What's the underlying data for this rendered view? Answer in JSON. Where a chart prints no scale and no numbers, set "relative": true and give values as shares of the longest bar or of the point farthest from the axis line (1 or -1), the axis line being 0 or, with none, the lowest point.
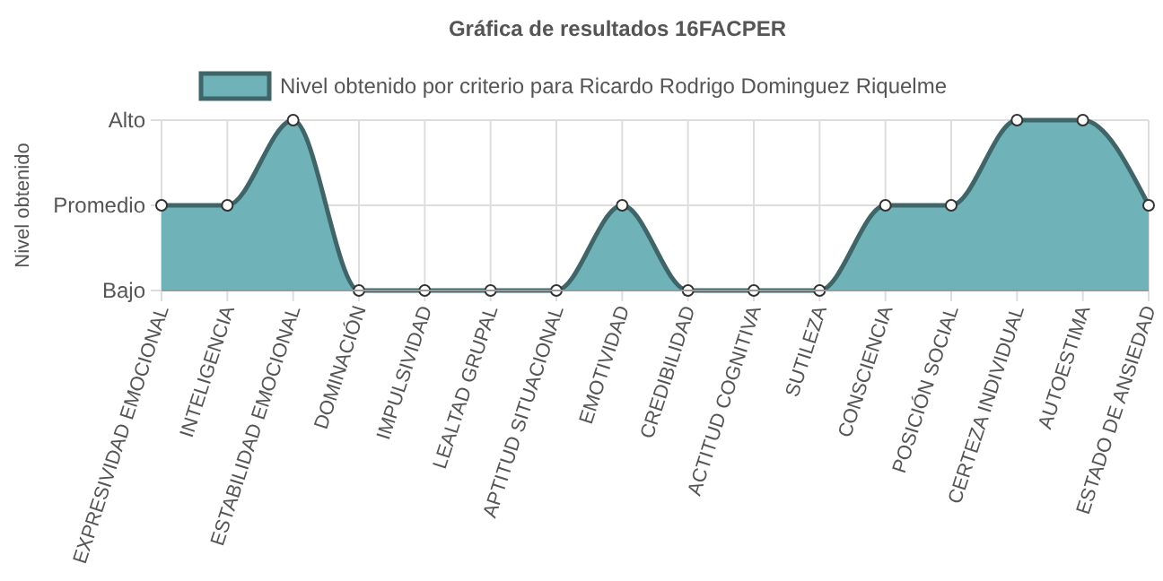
{
  "chart_data": {
    "type": "area",
    "title": "Gráfica de resultados 16FACPER",
    "ylabel": "Nivel obtenido",
    "categories": [
      "EXPRESIVIDAD EMOCIONAL",
      "INTELIGENCIA",
      "ESTABILIDAD EMOCIONAL",
      "DOMINACIÓN",
      "IMPULSIVIDAD",
      "LEALTAD GRUPAL",
      "APTITUD SITUACIONAL",
      "EMOTIVIDAD",
      "CREDIBILIDAD",
      "ACTITUD COGNITIVA",
      "SUTILEZA",
      "CONSCIENCIA",
      "POSICIÓN SOCIAL",
      "CERTEZA INDIVIDUAL",
      "AUTOESTIMA",
      "ESTADO DE ANSIEDAD"
    ],
    "series": [
      {
        "name": "Nivel obtenido por criterio para Ricardo Rodrigo Dominguez Riquelme",
        "color": "#6fb3b8",
        "values": [
          0.5,
          0.5,
          1,
          0,
          0,
          0,
          0,
          0.5,
          0,
          0,
          0,
          0.5,
          0.5,
          1,
          1,
          0.5
        ]
      }
    ],
    "relative": true,
    "annotations": [
      "Bajo",
      "Promedio",
      "Alto"
    ],
    "grid": true,
    "legend": "top",
    "marker": "circle"
  }
}
